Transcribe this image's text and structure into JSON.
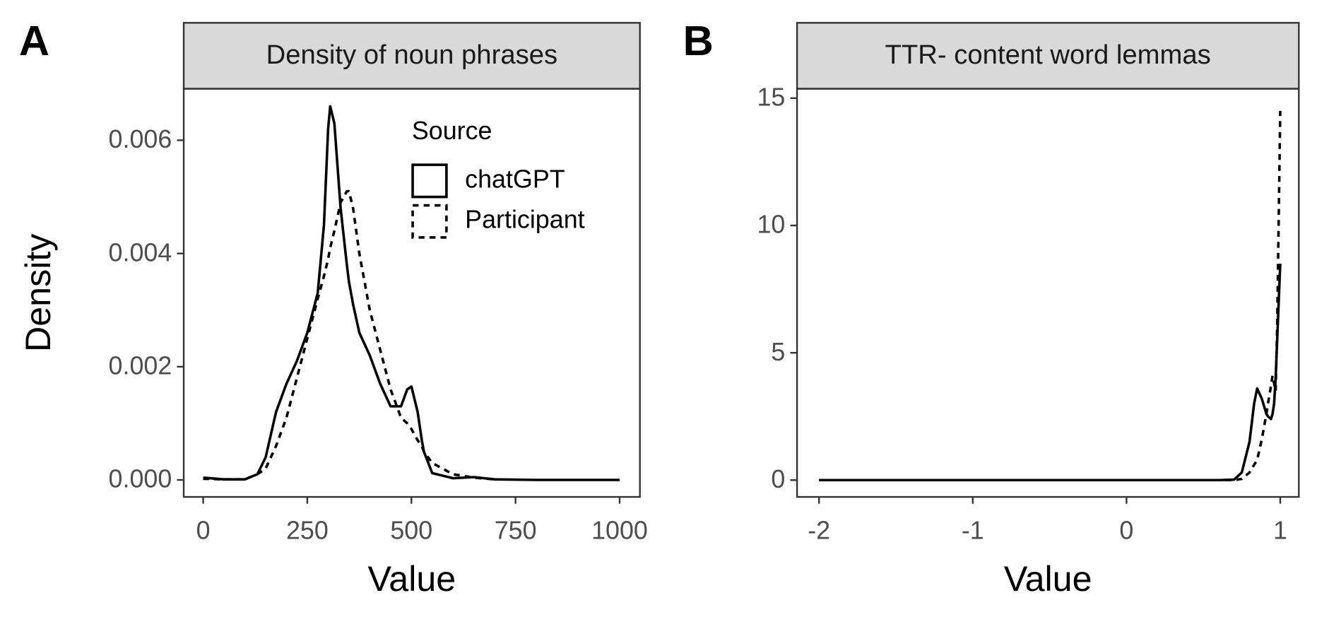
{
  "chart_data": [
    {
      "type": "line",
      "tag": "A",
      "title": "Density of noun phrases",
      "x_label": "Value",
      "y_label": "Density",
      "legend_title": "Source",
      "legend": "top-right",
      "x": [
        0,
        50,
        100,
        130,
        150,
        175,
        200,
        225,
        250,
        275,
        290,
        300,
        305,
        315,
        330,
        345,
        350,
        360,
        375,
        400,
        425,
        450,
        475,
        490,
        500,
        515,
        525,
        530,
        550,
        600,
        650,
        700,
        800,
        900,
        1000
      ],
      "series": [
        {
          "name": "chatGPT",
          "color": "#000000",
          "dash": "solid",
          "values": [
            4e-05,
            1e-05,
            1e-05,
            0.0001,
            0.0004,
            0.0012,
            0.0017,
            0.0021,
            0.0026,
            0.0033,
            0.0045,
            0.0062,
            0.0066,
            0.0063,
            0.0048,
            0.0038,
            0.0035,
            0.0031,
            0.0026,
            0.0022,
            0.0017,
            0.0013,
            0.0013,
            0.0016,
            0.00165,
            0.0012,
            0.0007,
            0.0005,
            0.00012,
            3e-05,
            5e-05,
            1e-05,
            0,
            0,
            0
          ]
        },
        {
          "name": "Participant",
          "color": "#000000",
          "dash": "dashed",
          "values": [
            2e-05,
            1e-05,
            1e-05,
            0.0001,
            0.0002,
            0.0006,
            0.0011,
            0.0018,
            0.0025,
            0.0032,
            0.0036,
            0.0039,
            0.0041,
            0.0044,
            0.0049,
            0.0051,
            0.0051,
            0.0048,
            0.004,
            0.003,
            0.0023,
            0.0016,
            0.0011,
            0.001,
            0.0009,
            0.0007,
            0.0006,
            0.0005,
            0.0003,
            0.0001,
            4e-05,
            1e-05,
            null,
            null,
            null
          ]
        }
      ],
      "xlim": [
        -46.7,
        1048.7
      ],
      "xticks": [
        0,
        250,
        500,
        750,
        1000
      ],
      "ylim": [
        -0.0003,
        0.00691
      ],
      "yticks": [
        {
          "value": 0,
          "label": "0.000"
        },
        {
          "value": 0.002,
          "label": "0.002"
        },
        {
          "value": 0.004,
          "label": "0.004"
        },
        {
          "value": 0.006,
          "label": "0.006"
        }
      ]
    },
    {
      "type": "line",
      "tag": "B",
      "title": "TTR- content word lemmas",
      "x_label": "Value",
      "x": [
        -2,
        -1,
        0,
        0.6,
        0.7,
        0.75,
        0.8,
        0.83,
        0.85,
        0.88,
        0.91,
        0.92,
        0.94,
        0.95,
        0.96,
        0.97,
        0.98,
        1.0
      ],
      "series": [
        {
          "name": "chatGPT",
          "color": "#000000",
          "dash": "solid",
          "values": [
            0,
            0,
            0,
            0,
            0.02,
            0.3,
            1.5,
            3.0,
            3.6,
            3.2,
            2.6,
            2.5,
            2.4,
            2.6,
            3.0,
            4.0,
            5.5,
            8.5
          ]
        },
        {
          "name": "Participant",
          "color": "#000000",
          "dash": "dashed",
          "values": [
            0,
            0,
            0,
            0,
            0,
            0.05,
            0.3,
            0.6,
            0.8,
            1.6,
            2.6,
            3.0,
            3.7,
            4.1,
            3.8,
            3.5,
            6.0,
            14.5
          ]
        }
      ],
      "xlim": [
        -2.143,
        1.121
      ],
      "xticks": [
        -2,
        -1,
        0,
        1
      ],
      "ylim": [
        -0.66,
        15.37
      ],
      "yticks": [
        0,
        5,
        10,
        15
      ]
    }
  ]
}
